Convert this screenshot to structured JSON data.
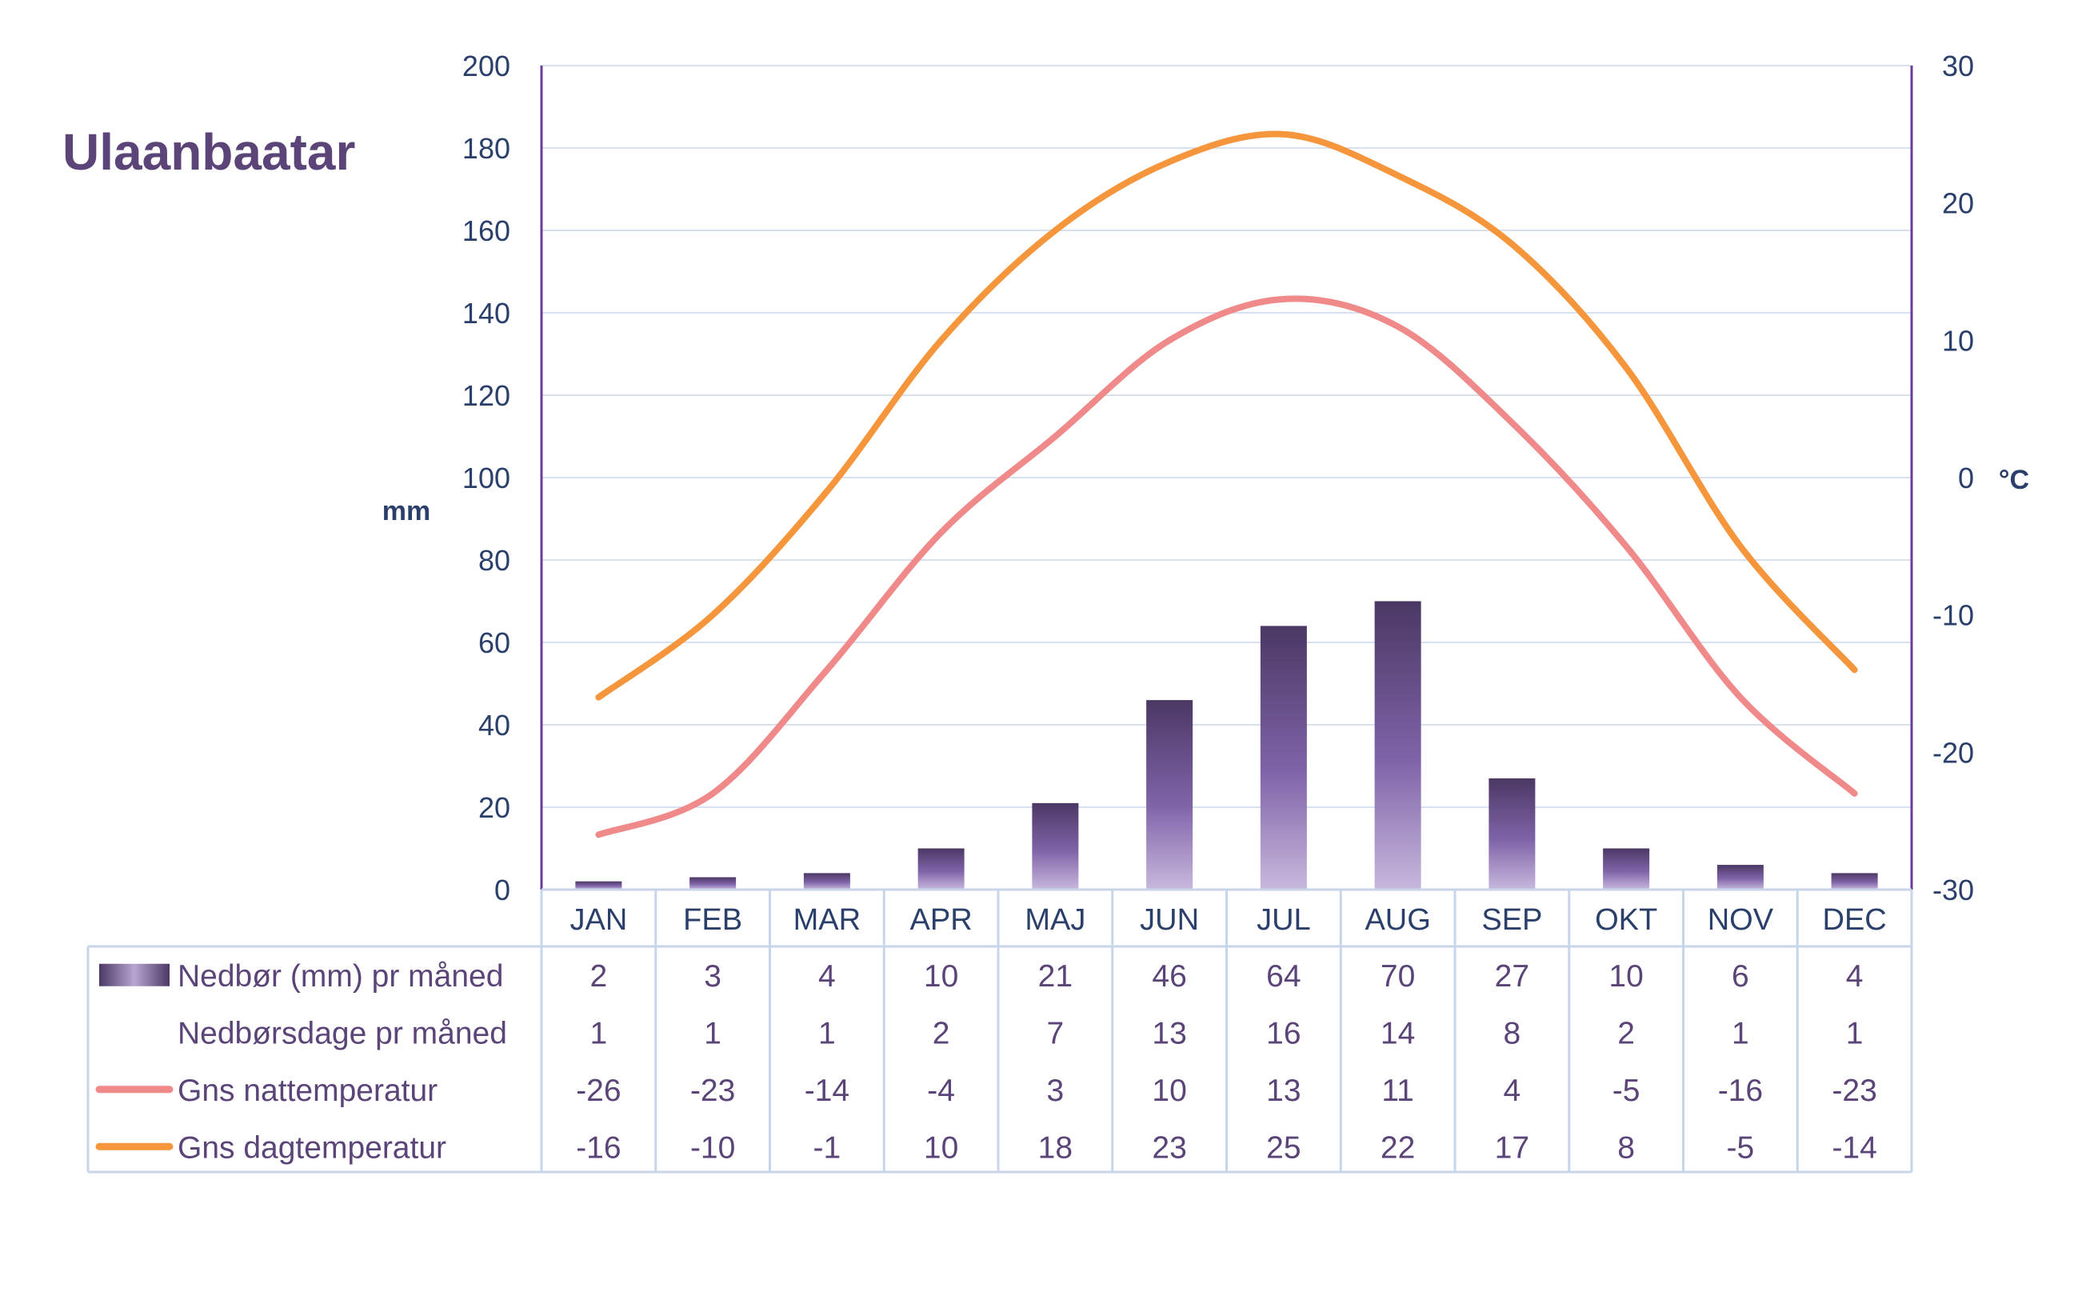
{
  "chart_data": {
    "type": "bar",
    "title": "Ulaanbaatar",
    "categories": [
      "JAN",
      "FEB",
      "MAR",
      "APR",
      "MAJ",
      "JUN",
      "JUL",
      "AUG",
      "SEP",
      "OKT",
      "NOV",
      "DEC"
    ],
    "y_left": {
      "label": "mm",
      "range": [
        0,
        200
      ],
      "ticks": [
        "0",
        "20",
        "40",
        "60",
        "80",
        "100",
        "120",
        "140",
        "160",
        "180",
        "200"
      ]
    },
    "y_right": {
      "label": "°C",
      "range": [
        -30,
        30
      ],
      "ticks": [
        "-30",
        "-20",
        "-10",
        "0",
        "10",
        "20",
        "30"
      ]
    },
    "grid": true,
    "legend_placement": "table-below",
    "series": [
      {
        "name": "Nedbør (mm) pr måned",
        "type": "bar",
        "axis": "left",
        "color": "#5b4478",
        "values": [
          2,
          3,
          4,
          10,
          21,
          46,
          64,
          70,
          27,
          10,
          6,
          4
        ]
      },
      {
        "name": "Nedbørsdage pr måned",
        "type": "none",
        "axis": "none",
        "values": [
          1,
          1,
          1,
          2,
          7,
          13,
          16,
          14,
          8,
          2,
          1,
          1
        ]
      },
      {
        "name": "Gns nattemperatur",
        "type": "line",
        "axis": "right",
        "color": "#f08a8a",
        "values": [
          -26,
          -23,
          -14,
          -4,
          3,
          10,
          13,
          11,
          4,
          -5,
          -16,
          -23
        ]
      },
      {
        "name": "Gns dagtemperatur",
        "type": "line",
        "axis": "right",
        "color": "#f5963c",
        "values": [
          -16,
          -10,
          -1,
          10,
          18,
          23,
          25,
          22,
          17,
          8,
          -5,
          -14
        ]
      }
    ]
  },
  "colors": {
    "title": "#5b4478",
    "axis_text": "#2a3f6a",
    "axis_line": "#6a3d9a",
    "grid": "#d7e1ef",
    "table_border": "#c7d6ea",
    "bar_dark": "#4b3864",
    "bar_mid": "#7f63a8",
    "bar_light": "#c8b8dd"
  }
}
